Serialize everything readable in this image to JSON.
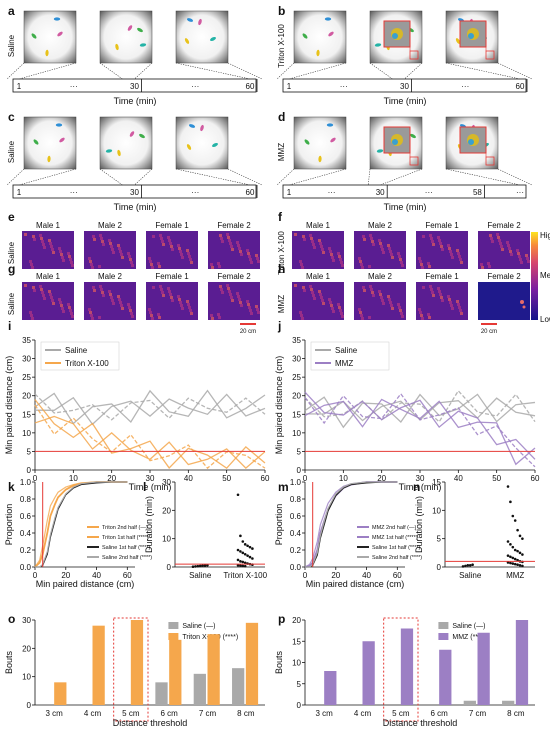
{
  "panel_letters": [
    "a",
    "b",
    "c",
    "d",
    "e",
    "f",
    "g",
    "h",
    "i",
    "j",
    "k",
    "l",
    "m",
    "n",
    "o",
    "p"
  ],
  "video": {
    "a": {
      "side": "Saline",
      "ticks": [
        "1",
        "···",
        "30",
        "···",
        "60"
      ],
      "xlabel": "Time (min)"
    },
    "b": {
      "side": "Triton X-100",
      "ticks": [
        "1",
        "···",
        "30",
        "···",
        "60"
      ],
      "xlabel": "Time (min)"
    },
    "c": {
      "side": "Saline",
      "ticks": [
        "1",
        "···",
        "30",
        "···",
        "60"
      ],
      "xlabel": "Time (min)"
    },
    "d": {
      "side": "MMZ",
      "ticks": [
        "1",
        "···",
        "30",
        "···",
        "58",
        "···"
      ],
      "xlabel": "Time (min)"
    }
  },
  "heatmaps": {
    "e": {
      "side": "Saline",
      "titles": [
        "Male 1",
        "Male 2",
        "Female 1",
        "Female 2"
      ]
    },
    "f": {
      "side": "Triton X-100",
      "titles": [
        "Male 1",
        "Male 2",
        "Female 1",
        "Female 2"
      ]
    },
    "g": {
      "side": "Saline",
      "titles": [
        "Male 1",
        "Male 2",
        "Female 1",
        "Female 2"
      ]
    },
    "h": {
      "side": "MMZ",
      "titles": [
        "Male 1",
        "Male 2",
        "Female 1",
        "Female 2"
      ]
    },
    "scalebar": "20 cm",
    "colorbar": [
      "High",
      "Medium",
      "Low"
    ]
  },
  "colors": {
    "saline": "#a9a9a9",
    "triton": "#f5a74c",
    "mmz": "#9c7fc4",
    "threshold": "#e53935",
    "heat_low": "#1f1a8c",
    "heat_mid": "#c23c81",
    "heat_high": "#fbd524"
  },
  "chart_data": [
    {
      "panel": "i",
      "type": "line",
      "xlabel": "Time (min)",
      "ylabel": "Min paired distance (cm)",
      "xlim": [
        0,
        60
      ],
      "ylim": [
        0,
        35
      ],
      "xticks": [
        0,
        10,
        20,
        30,
        40,
        50,
        60
      ],
      "yticks": [
        0,
        5,
        10,
        15,
        20,
        25,
        30,
        35
      ],
      "threshold": 5,
      "series": [
        {
          "name": "Saline",
          "x": [
            0,
            5,
            10,
            15,
            20,
            25,
            30,
            35,
            40,
            45,
            50,
            55,
            60
          ],
          "y": [
            17,
            18,
            16,
            15,
            17,
            16,
            18,
            17,
            16,
            18,
            17,
            16,
            18
          ]
        },
        {
          "name": "Triton X-100",
          "x": [
            0,
            5,
            10,
            15,
            20,
            25,
            30,
            35,
            40,
            45,
            50,
            55,
            60
          ],
          "y": [
            16,
            13,
            11,
            9,
            7,
            6,
            5,
            4,
            4,
            3,
            3,
            3,
            3
          ]
        }
      ]
    },
    {
      "panel": "j",
      "type": "line",
      "xlabel": "Time (min)",
      "ylabel": "Min paired distance (cm)",
      "xlim": [
        0,
        60
      ],
      "ylim": [
        0,
        35
      ],
      "xticks": [
        0,
        10,
        20,
        30,
        40,
        50,
        60
      ],
      "yticks": [
        0,
        5,
        10,
        15,
        20,
        25,
        30,
        35
      ],
      "threshold": 5,
      "series": [
        {
          "name": "Saline",
          "x": [
            0,
            5,
            10,
            15,
            20,
            25,
            30,
            35,
            40,
            45,
            50,
            55,
            60
          ],
          "y": [
            16,
            17,
            15,
            16,
            17,
            16,
            17,
            16,
            18,
            17,
            16,
            17,
            16
          ]
        },
        {
          "name": "MMZ",
          "x": [
            0,
            5,
            10,
            15,
            20,
            25,
            30,
            35,
            40,
            45,
            50,
            55,
            60
          ],
          "y": [
            18,
            16,
            17,
            15,
            16,
            17,
            16,
            15,
            14,
            13,
            10,
            5,
            4
          ]
        }
      ]
    },
    {
      "panel": "k",
      "type": "line",
      "xlabel": "Min paired distance (cm)",
      "ylabel": "Proportion",
      "xlim": [
        0,
        65
      ],
      "ylim": [
        0,
        1
      ],
      "xticks": [
        0,
        20,
        40,
        60
      ],
      "yticks": [
        0.0,
        0.2,
        0.4,
        0.6,
        0.8,
        1.0
      ],
      "threshold": 5,
      "series": [
        {
          "name": "Triton 2nd half (—)",
          "x": [
            0,
            3,
            5,
            8,
            10,
            13,
            15,
            20,
            25,
            30,
            40,
            50,
            60
          ],
          "y": [
            0,
            0.08,
            0.25,
            0.55,
            0.72,
            0.82,
            0.88,
            0.94,
            0.97,
            0.99,
            1,
            1,
            1
          ]
        },
        {
          "name": "Triton 1st half (****)",
          "x": [
            0,
            3,
            5,
            8,
            10,
            13,
            15,
            20,
            25,
            30,
            40,
            50,
            60
          ],
          "y": [
            0,
            0.05,
            0.15,
            0.4,
            0.6,
            0.74,
            0.82,
            0.91,
            0.96,
            0.98,
            1,
            1,
            1
          ]
        },
        {
          "name": "Saline 1st half (****)",
          "x": [
            0,
            3,
            5,
            8,
            10,
            13,
            15,
            20,
            25,
            30,
            40,
            50,
            60
          ],
          "y": [
            0,
            0,
            0.02,
            0.15,
            0.35,
            0.55,
            0.68,
            0.85,
            0.93,
            0.97,
            0.99,
            1,
            1
          ]
        },
        {
          "name": "Saline 2nd half (****)",
          "x": [
            0,
            3,
            5,
            8,
            10,
            13,
            15,
            20,
            25,
            30,
            40,
            50,
            60
          ],
          "y": [
            0,
            0,
            0.03,
            0.18,
            0.38,
            0.58,
            0.7,
            0.86,
            0.94,
            0.98,
            1,
            1,
            1
          ]
        }
      ]
    },
    {
      "panel": "l",
      "type": "scatter",
      "ylabel": "Duration (min)",
      "categories": [
        "Saline",
        "Triton X-100"
      ],
      "ylim": [
        0,
        30
      ],
      "yticks": [
        0,
        10,
        20,
        30
      ],
      "threshold": 1,
      "series": [
        {
          "name": "Saline",
          "values": [
            0.1,
            0.2,
            0.3,
            0.4,
            0.5,
            0.5,
            0.6
          ]
        },
        {
          "name": "Triton X-100",
          "values": [
            25.5,
            11,
            9,
            8,
            7.5,
            7,
            6.5,
            6,
            5.5,
            5,
            4.5,
            4,
            3.5,
            3,
            2.5,
            2,
            1.8,
            1.5,
            1.2,
            1,
            0.8,
            0.6,
            0.5,
            0.4,
            0.3
          ]
        }
      ]
    },
    {
      "panel": "m",
      "type": "line",
      "xlabel": "Min paired distance (cm)",
      "ylabel": "Proportion",
      "xlim": [
        0,
        65
      ],
      "ylim": [
        0,
        1
      ],
      "xticks": [
        0,
        20,
        40,
        60
      ],
      "yticks": [
        0.0,
        0.2,
        0.4,
        0.6,
        0.8,
        1.0
      ],
      "threshold": 5,
      "series": [
        {
          "name": "MMZ 2nd half (—)",
          "x": [
            0,
            3,
            5,
            8,
            10,
            13,
            15,
            20,
            25,
            30,
            40,
            50,
            60
          ],
          "y": [
            0,
            0.03,
            0.1,
            0.3,
            0.5,
            0.65,
            0.75,
            0.88,
            0.95,
            0.98,
            1,
            1,
            1
          ]
        },
        {
          "name": "MMZ 1st half (****)",
          "x": [
            0,
            3,
            5,
            8,
            10,
            13,
            15,
            20,
            25,
            30,
            40,
            50,
            60
          ],
          "y": [
            0,
            0.01,
            0.05,
            0.2,
            0.4,
            0.57,
            0.68,
            0.84,
            0.93,
            0.97,
            1,
            1,
            1
          ]
        },
        {
          "name": "Saline 1st half (****)",
          "x": [
            0,
            3,
            5,
            8,
            10,
            13,
            15,
            20,
            25,
            30,
            40,
            50,
            60
          ],
          "y": [
            0,
            0,
            0.02,
            0.14,
            0.34,
            0.53,
            0.66,
            0.84,
            0.93,
            0.97,
            0.99,
            1,
            1
          ]
        },
        {
          "name": "Saline 2nd half (****)",
          "x": [
            0,
            3,
            5,
            8,
            10,
            13,
            15,
            20,
            25,
            30,
            40,
            50,
            60
          ],
          "y": [
            0,
            0,
            0.03,
            0.17,
            0.37,
            0.57,
            0.69,
            0.86,
            0.94,
            0.98,
            1,
            1,
            1
          ]
        }
      ]
    },
    {
      "panel": "n",
      "type": "scatter",
      "ylabel": "Duration (min)",
      "categories": [
        "Saline",
        "MMZ"
      ],
      "ylim": [
        0,
        15
      ],
      "yticks": [
        0,
        5,
        10,
        15
      ],
      "threshold": 1,
      "series": [
        {
          "name": "Saline",
          "values": [
            0.1,
            0.2,
            0.3,
            0.3,
            0.4
          ]
        },
        {
          "name": "MMZ",
          "values": [
            14.2,
            11.5,
            9,
            8.2,
            6.5,
            5.5,
            5,
            4.5,
            4,
            3.5,
            3,
            2.8,
            2.5,
            2.2,
            2,
            1.8,
            1.6,
            1.4,
            1.2,
            1,
            0.9,
            0.8,
            0.7,
            0.6,
            0.5,
            0.4,
            0.3,
            0.2
          ]
        }
      ]
    },
    {
      "panel": "o",
      "type": "bar",
      "xlabel": "Distance threshold",
      "ylabel": "Bouts",
      "categories": [
        "3 cm",
        "4 cm",
        "5 cm",
        "6 cm",
        "7 cm",
        "8 cm"
      ],
      "ylim": [
        0,
        30
      ],
      "yticks": [
        0,
        10,
        20,
        30
      ],
      "highlight": "5 cm",
      "series": [
        {
          "name": "Saline (—)",
          "values": [
            0,
            0,
            0,
            8,
            11,
            13
          ]
        },
        {
          "name": "Triton X-100 (****)",
          "values": [
            8,
            28,
            30,
            23,
            25,
            29
          ]
        }
      ]
    },
    {
      "panel": "p",
      "type": "bar",
      "xlabel": "Distance threshold",
      "ylabel": "Bouts",
      "categories": [
        "3 cm",
        "4 cm",
        "5 cm",
        "6 cm",
        "7 cm",
        "8 cm"
      ],
      "ylim": [
        0,
        20
      ],
      "yticks": [
        0,
        5,
        10,
        15,
        20
      ],
      "highlight": "5 cm",
      "series": [
        {
          "name": "Saline (—)",
          "values": [
            0,
            0,
            0,
            0,
            1,
            1
          ]
        },
        {
          "name": "MMZ (****)",
          "values": [
            8,
            15,
            18,
            13,
            17,
            20
          ]
        }
      ]
    }
  ]
}
